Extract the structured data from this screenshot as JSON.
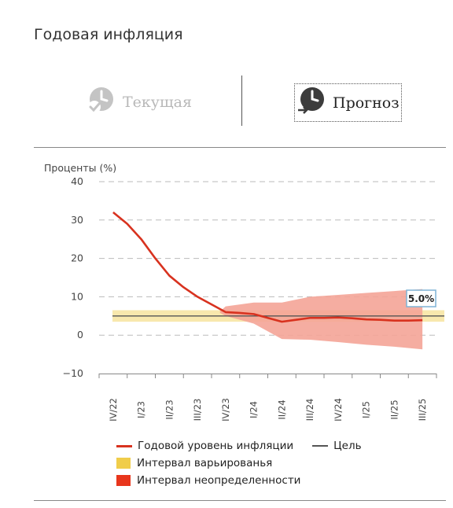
{
  "page": {
    "title": "Годовая инфляция"
  },
  "toggles": {
    "current_label": "Текущая",
    "forecast_label": "Прогноз"
  },
  "colors": {
    "inflation": "#d8321f",
    "target": "#555555",
    "variation": "#f0cd4a",
    "uncertainty": "#f4a497",
    "uncertainty_legend": "#e8361c",
    "grid": "#bbbbbb"
  },
  "chart_data": {
    "type": "line",
    "ylabel": "Проценты (%)",
    "ylim": [
      -10,
      40
    ],
    "yticks": [
      40,
      30,
      20,
      10,
      0,
      -10
    ],
    "categories": [
      "IV/22",
      "I/23",
      "II/23",
      "III/23",
      "IV/23",
      "I/24",
      "II/24",
      "III/24",
      "IV/24",
      "I/25",
      "II/25",
      "III/25"
    ],
    "series": [
      {
        "name": "Годовой уровень инфляции",
        "x": [
          0,
          0.5,
          1,
          1.5,
          2,
          2.5,
          3,
          3.5,
          4,
          4.5,
          5,
          5.5,
          6,
          6.5,
          7,
          7.5,
          8,
          8.5,
          9,
          9.5,
          10,
          10.5,
          11
        ],
        "values": [
          32,
          29,
          25,
          20,
          15.5,
          12.5,
          10,
          8,
          6,
          5.8,
          5.5,
          4.5,
          3.5,
          4,
          4.5,
          4.5,
          4.6,
          4.4,
          4.1,
          4,
          3.8,
          3.8,
          3.9
        ]
      },
      {
        "name": "Цель",
        "value": 5
      }
    ],
    "variation_band": {
      "name": "Интервал варьированья",
      "low": 3.5,
      "high": 6.5
    },
    "uncertainty_band": {
      "name": "Интервал неопределенности",
      "x": [
        3.8,
        4,
        5,
        6,
        7,
        8,
        9,
        10,
        11
      ],
      "upper": [
        6.2,
        7.5,
        8.5,
        8.5,
        10,
        10.5,
        11,
        11.5,
        12
      ],
      "lower": [
        5.8,
        5,
        3,
        -1,
        -1.2,
        -1.8,
        -2.5,
        -3,
        -3.7
      ]
    },
    "annotation": "5.0%",
    "legend_position": "bottom"
  },
  "legend": {
    "inflation": "Годовой уровень инфляции",
    "target": "Цель",
    "variation": "Интервал варьированья",
    "uncertainty": "Интервал неопределенности"
  }
}
